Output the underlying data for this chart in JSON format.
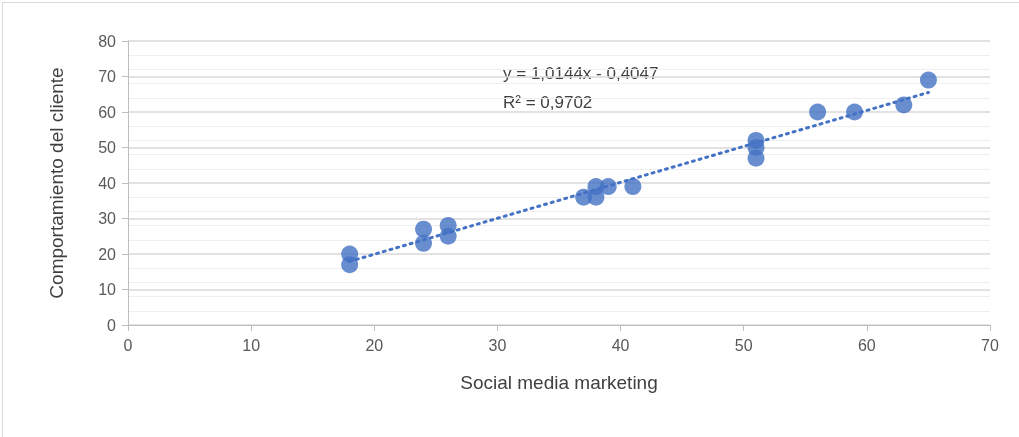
{
  "chart_data": {
    "type": "scatter",
    "xlabel": "Social media marketing",
    "ylabel": "Comportamiento del cliente",
    "annotations": [
      "y = 1,0144x - 0,4047",
      "R² = 0,9702"
    ],
    "series": [
      {
        "color": "#4472c4",
        "marker": "circle",
        "x": [
          18,
          18,
          24,
          24,
          26,
          26,
          37,
          38,
          38,
          39,
          41,
          51,
          51,
          51,
          56,
          59,
          63,
          65
        ],
        "values": [
          20,
          17,
          27,
          23,
          28,
          25,
          36,
          39,
          36,
          39,
          39,
          52,
          50,
          47,
          60,
          60,
          62,
          69
        ]
      },
      {
        "type": "line",
        "color": "#4472c4",
        "line_style": "dotted",
        "marker": "none",
        "x": [
          18,
          65
        ],
        "values": [
          17.9,
          65.5
        ]
      }
    ],
    "xlim": [
      0,
      70
    ],
    "xticks": [
      0,
      10,
      20,
      30,
      40,
      50,
      60,
      70
    ],
    "ylim": [
      0,
      80
    ],
    "yticks": [
      0,
      10,
      20,
      30,
      40,
      50,
      60,
      70,
      80
    ],
    "grid": "y"
  }
}
